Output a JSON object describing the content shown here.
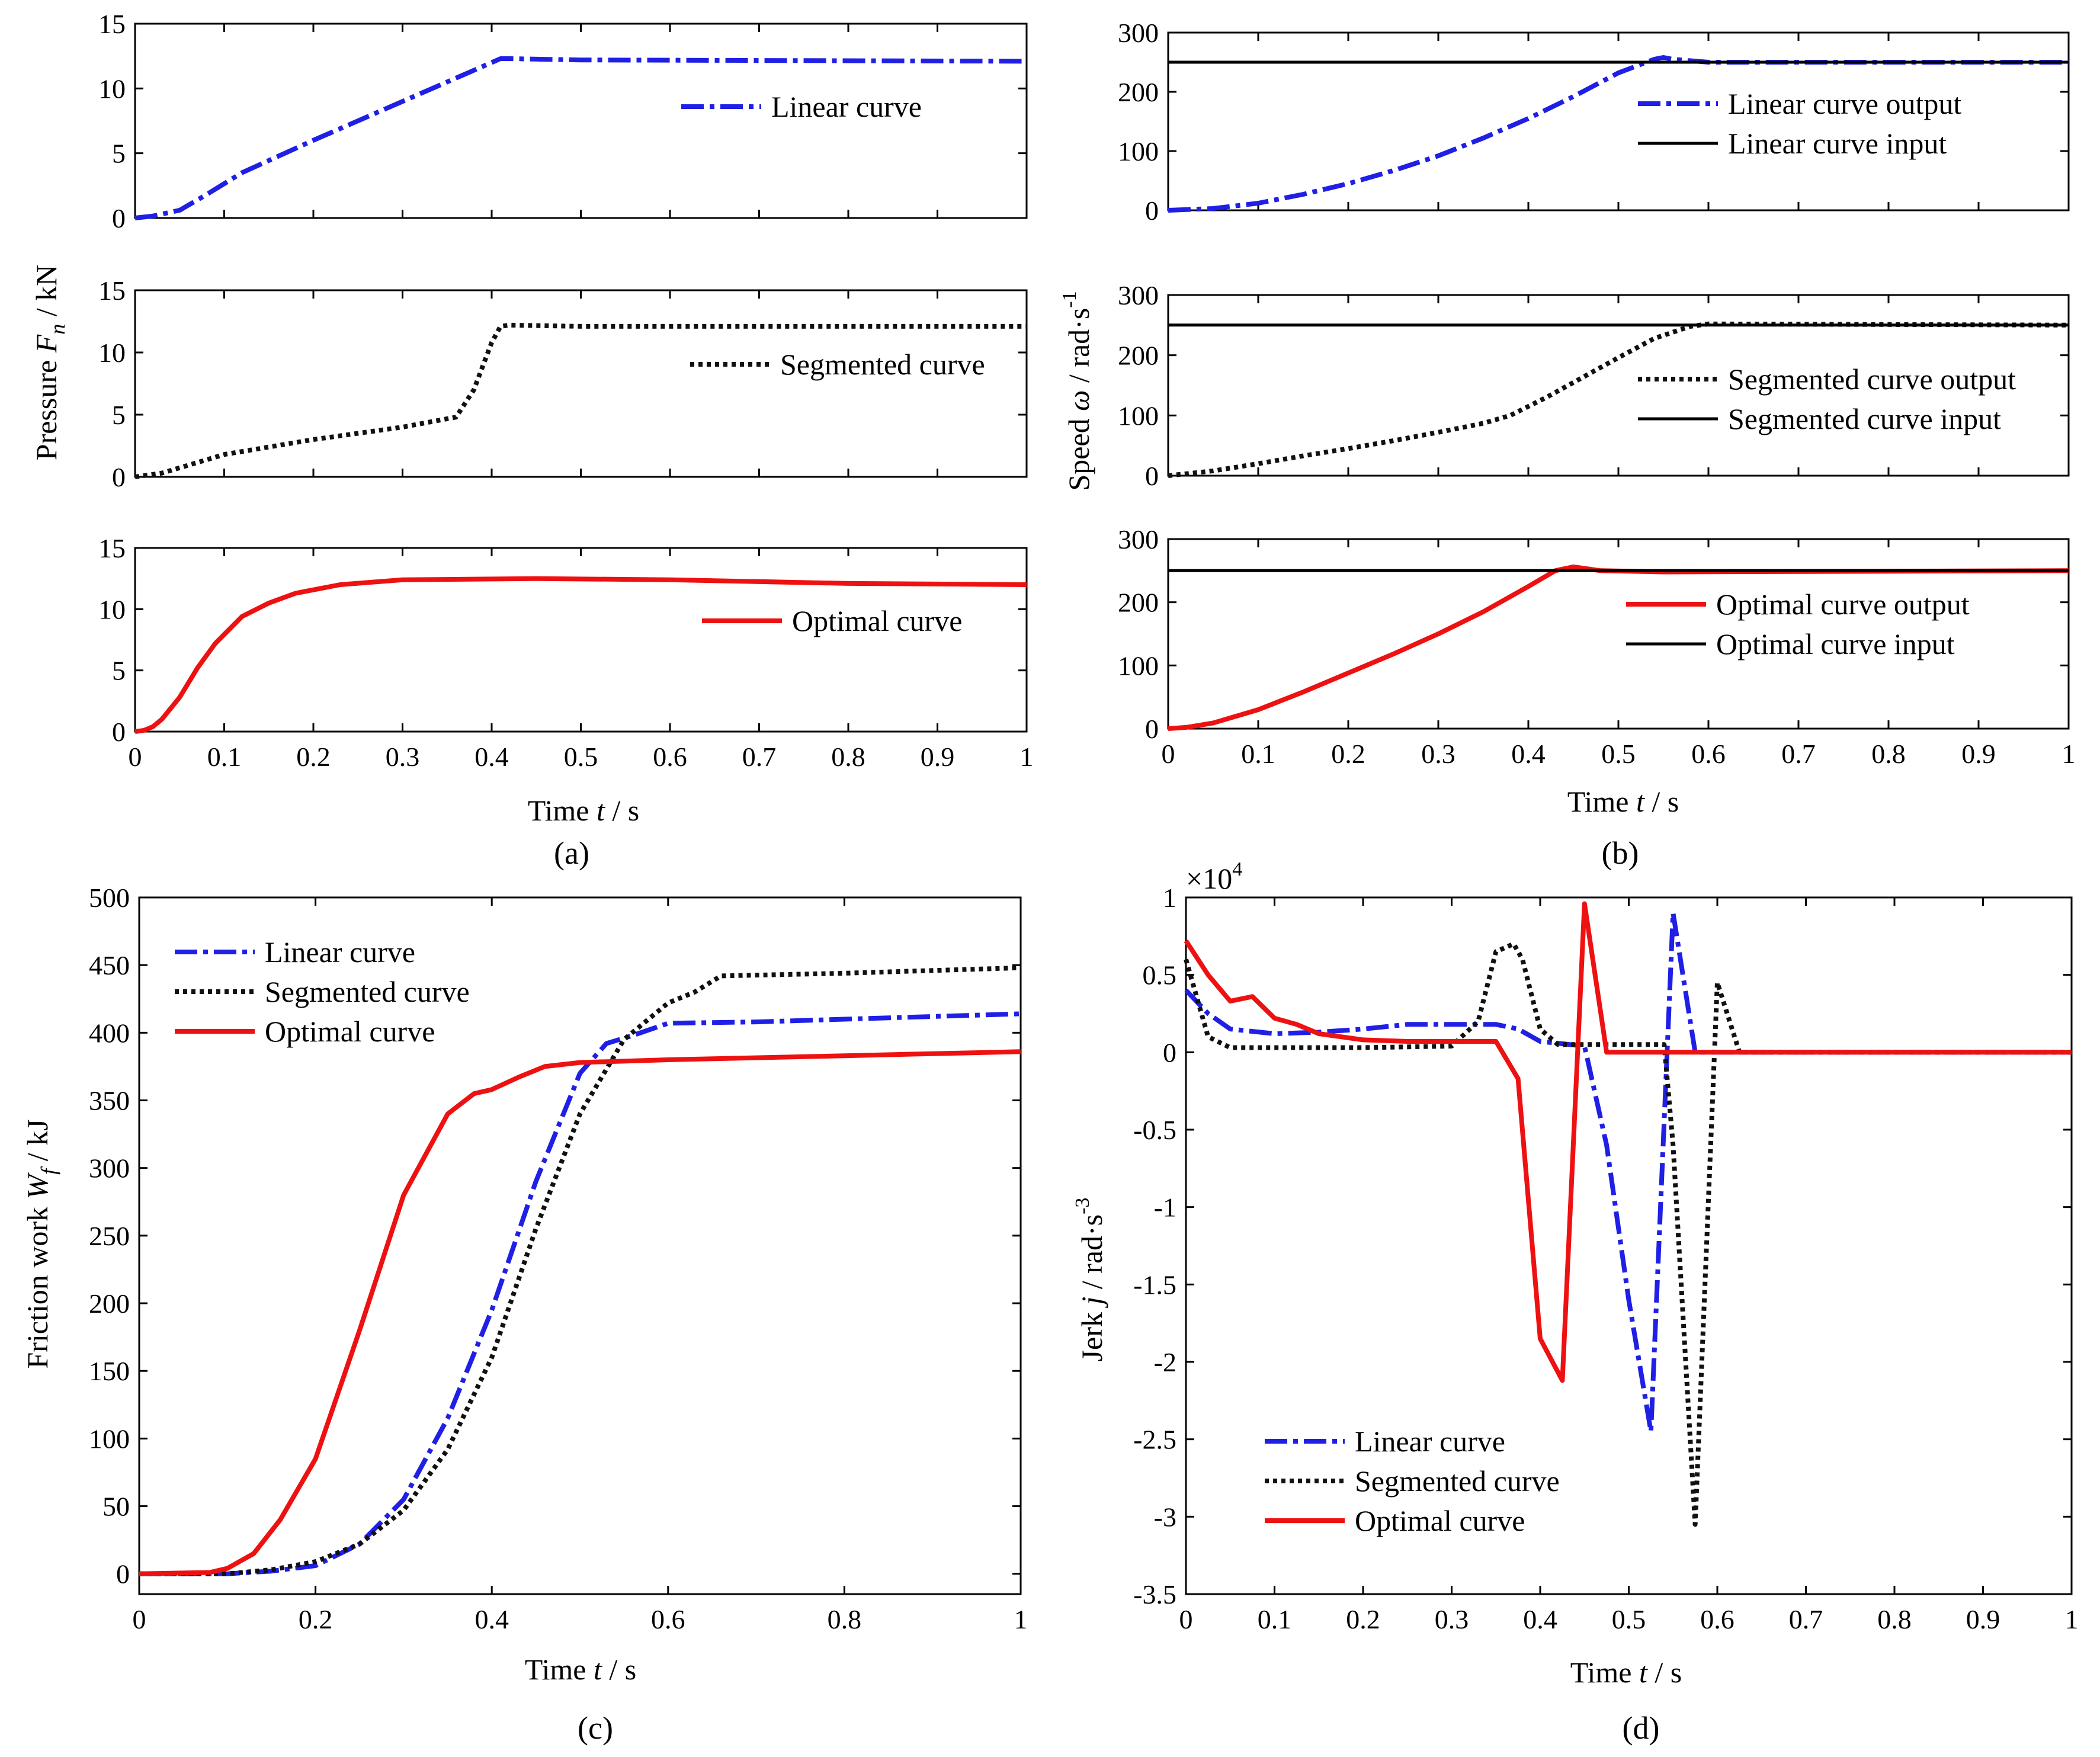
{
  "colors": {
    "linear": "#1f1fe6",
    "segmented": "#111111",
    "optimal": "#ee1111",
    "input": "#000000"
  },
  "captions": {
    "a": "(a)",
    "b": "(b)",
    "c": "(c)",
    "d": "(d)"
  },
  "labels": {
    "time": "Time",
    "t": "t",
    "sec": " / s",
    "pressure": "Pressure",
    "F": "F",
    "n": "n",
    "kN": " / kN",
    "speed": "Speed",
    "omega": "ω",
    "rad_s": " / rad·s",
    "exp_m1": "-1",
    "friction": "Friction work",
    "W": "W",
    "f": "f",
    "kJ": " / kJ",
    "jerk": "Jerk",
    "j": "j",
    "rad_s3": " / rad·s",
    "exp_m3": "-3",
    "mult": "×10",
    "mult_exp": "4"
  },
  "chart_data": [
    {
      "id": "a1",
      "type": "line",
      "xlim": [
        0,
        1
      ],
      "ylim": [
        0,
        15
      ],
      "xticks": [
        "0",
        "0.1",
        "0.2",
        "0.3",
        "0.4",
        "0.5",
        "0.6",
        "0.7",
        "0.8",
        "0.9",
        "1"
      ],
      "yticks": [
        "0",
        "5",
        "10",
        "15"
      ],
      "series": [
        {
          "name": "Linear curve",
          "style": "linear",
          "x": [
            0,
            0.02,
            0.05,
            0.08,
            0.12,
            0.2,
            0.3,
            0.41,
            0.42,
            0.5,
            1
          ],
          "y": [
            0,
            0.15,
            0.6,
            1.8,
            3.5,
            6,
            9,
            12.3,
            12.3,
            12.2,
            12.1
          ]
        }
      ]
    },
    {
      "id": "a2",
      "type": "line",
      "xlim": [
        0,
        1
      ],
      "ylim": [
        0,
        15
      ],
      "xticks": [
        "0",
        "0.1",
        "0.2",
        "0.3",
        "0.4",
        "0.5",
        "0.6",
        "0.7",
        "0.8",
        "0.9",
        "1"
      ],
      "yticks": [
        "0",
        "5",
        "10",
        "15"
      ],
      "series": [
        {
          "name": "Segmented curve",
          "style": "segmented",
          "x": [
            0,
            0.03,
            0.1,
            0.2,
            0.3,
            0.36,
            0.38,
            0.4,
            0.41,
            0.42,
            0.5,
            1
          ],
          "y": [
            0,
            0.3,
            1.8,
            3,
            4,
            4.8,
            7,
            10.8,
            12.1,
            12.2,
            12.1,
            12.1
          ]
        }
      ]
    },
    {
      "id": "a3",
      "type": "line",
      "xlim": [
        0,
        1
      ],
      "ylim": [
        0,
        15
      ],
      "xticks": [
        "0",
        "0.1",
        "0.2",
        "0.3",
        "0.4",
        "0.5",
        "0.6",
        "0.7",
        "0.8",
        "0.9",
        "1"
      ],
      "yticks": [
        "0",
        "5",
        "10",
        "15"
      ],
      "series": [
        {
          "name": "Optimal curve",
          "style": "optimal",
          "x": [
            0,
            0.01,
            0.02,
            0.03,
            0.05,
            0.07,
            0.09,
            0.12,
            0.15,
            0.18,
            0.23,
            0.3,
            0.45,
            0.6,
            0.8,
            1
          ],
          "y": [
            0,
            0.1,
            0.4,
            1,
            2.8,
            5.2,
            7.2,
            9.4,
            10.5,
            11.3,
            12,
            12.4,
            12.5,
            12.4,
            12.1,
            12
          ]
        }
      ]
    },
    {
      "id": "b1",
      "type": "line",
      "xlim": [
        0,
        1
      ],
      "ylim": [
        0,
        300
      ],
      "xticks": [
        "0",
        "0.1",
        "0.2",
        "0.3",
        "0.4",
        "0.5",
        "0.6",
        "0.7",
        "0.8",
        "0.9",
        "1"
      ],
      "yticks": [
        "0",
        "100",
        "200",
        "300"
      ],
      "series": [
        {
          "name": "Linear curve output",
          "style": "linear",
          "x": [
            0,
            0.05,
            0.1,
            0.15,
            0.2,
            0.25,
            0.3,
            0.35,
            0.4,
            0.45,
            0.5,
            0.54,
            0.55,
            0.56,
            0.6,
            1
          ],
          "y": [
            0,
            3,
            12,
            27,
            45,
            67,
            92,
            122,
            155,
            192,
            232,
            255,
            258,
            255,
            250,
            250
          ]
        },
        {
          "name": "Linear curve input",
          "style": "input",
          "x": [
            0,
            1
          ],
          "y": [
            250,
            250
          ]
        }
      ]
    },
    {
      "id": "b2",
      "type": "line",
      "xlim": [
        0,
        1
      ],
      "ylim": [
        0,
        300
      ],
      "xticks": [
        "0",
        "0.1",
        "0.2",
        "0.3",
        "0.4",
        "0.5",
        "0.6",
        "0.7",
        "0.8",
        "0.9",
        "1"
      ],
      "yticks": [
        "0",
        "100",
        "200",
        "300"
      ],
      "series": [
        {
          "name": "Segmented curve output",
          "style": "segmented",
          "x": [
            0,
            0.05,
            0.1,
            0.15,
            0.2,
            0.25,
            0.3,
            0.35,
            0.38,
            0.42,
            0.46,
            0.5,
            0.54,
            0.58,
            0.6,
            1
          ],
          "y": [
            0,
            8,
            20,
            33,
            45,
            58,
            72,
            87,
            100,
            130,
            163,
            196,
            228,
            248,
            252,
            250
          ]
        },
        {
          "name": "Segmented curve input",
          "style": "input",
          "x": [
            0,
            1
          ],
          "y": [
            250,
            250
          ]
        }
      ]
    },
    {
      "id": "b3",
      "type": "line",
      "xlim": [
        0,
        1
      ],
      "ylim": [
        0,
        300
      ],
      "xticks": [
        "0",
        "0.1",
        "0.2",
        "0.3",
        "0.4",
        "0.5",
        "0.6",
        "0.7",
        "0.8",
        "0.9",
        "1"
      ],
      "yticks": [
        "0",
        "100",
        "200",
        "300"
      ],
      "series": [
        {
          "name": "Optimal curve output",
          "style": "optimal",
          "x": [
            0,
            0.02,
            0.05,
            0.1,
            0.15,
            0.2,
            0.25,
            0.3,
            0.35,
            0.4,
            0.43,
            0.45,
            0.48,
            0.55,
            1
          ],
          "y": [
            0,
            2,
            9,
            30,
            58,
            88,
            118,
            150,
            185,
            225,
            250,
            256,
            250,
            248,
            250
          ]
        },
        {
          "name": "Optimal curve input",
          "style": "input",
          "x": [
            0,
            1
          ],
          "y": [
            250,
            250
          ]
        }
      ]
    },
    {
      "id": "c",
      "type": "line",
      "xlim": [
        0,
        1
      ],
      "ylim": [
        -15,
        500
      ],
      "xticks": [
        "0",
        "0.2",
        "0.4",
        "0.6",
        "0.8",
        "1"
      ],
      "yticks": [
        "0",
        "50",
        "100",
        "150",
        "200",
        "250",
        "300",
        "350",
        "400",
        "450",
        "500"
      ],
      "series": [
        {
          "name": "Linear curve",
          "style": "linear",
          "x": [
            0,
            0.1,
            0.15,
            0.2,
            0.25,
            0.3,
            0.35,
            0.4,
            0.45,
            0.5,
            0.53,
            0.56,
            0.6,
            0.7,
            0.8,
            1
          ],
          "y": [
            0,
            0,
            2,
            6,
            22,
            55,
            115,
            195,
            290,
            370,
            392,
            398,
            407,
            408,
            410,
            414
          ]
        },
        {
          "name": "Segmented curve",
          "style": "segmented",
          "x": [
            0,
            0.1,
            0.15,
            0.2,
            0.25,
            0.3,
            0.35,
            0.4,
            0.45,
            0.5,
            0.55,
            0.6,
            0.63,
            0.66,
            0.8,
            1
          ],
          "y": [
            0,
            0,
            3,
            9,
            22,
            47,
            92,
            160,
            255,
            340,
            395,
            422,
            430,
            442,
            444,
            448
          ]
        },
        {
          "name": "Optimal curve",
          "style": "optimal",
          "x": [
            0,
            0.08,
            0.1,
            0.13,
            0.16,
            0.2,
            0.25,
            0.3,
            0.35,
            0.38,
            0.4,
            0.43,
            0.46,
            0.5,
            0.6,
            0.8,
            1
          ],
          "y": [
            0,
            1,
            4,
            15,
            40,
            85,
            180,
            280,
            340,
            355,
            358,
            367,
            375,
            378,
            380,
            383,
            386
          ]
        }
      ]
    },
    {
      "id": "d",
      "type": "line",
      "xlim": [
        0,
        1
      ],
      "ylim": [
        -3.5,
        1
      ],
      "xticks": [
        "0",
        "0.1",
        "0.2",
        "0.3",
        "0.4",
        "0.5",
        "0.6",
        "0.7",
        "0.8",
        "0.9",
        "1"
      ],
      "yticks": [
        "-3.5",
        "-3",
        "-2.5",
        "-2",
        "-1.5",
        "-1",
        "-0.5",
        "0",
        "0.5",
        "1"
      ],
      "series": [
        {
          "name": "Linear curve",
          "style": "linear",
          "x": [
            0,
            0.025,
            0.05,
            0.1,
            0.15,
            0.2,
            0.25,
            0.3,
            0.35,
            0.375,
            0.4,
            0.45,
            0.475,
            0.5,
            0.525,
            0.55,
            0.575,
            0.6,
            1
          ],
          "y": [
            0.4,
            0.25,
            0.15,
            0.12,
            0.13,
            0.15,
            0.18,
            0.18,
            0.18,
            0.15,
            0.07,
            0.04,
            -0.6,
            -1.6,
            -2.45,
            0.9,
            0,
            0,
            0
          ]
        },
        {
          "name": "Segmented curve",
          "style": "segmented",
          "x": [
            0,
            0.025,
            0.05,
            0.1,
            0.2,
            0.3,
            0.33,
            0.35,
            0.37,
            0.38,
            0.4,
            0.42,
            0.45,
            0.5,
            0.54,
            0.55,
            0.575,
            0.6,
            0.625,
            0.65,
            1
          ],
          "y": [
            0.6,
            0.1,
            0.03,
            0.03,
            0.03,
            0.04,
            0.2,
            0.65,
            0.7,
            0.6,
            0.15,
            0.05,
            0.05,
            0.05,
            0.05,
            -0.6,
            -3.05,
            0.45,
            0,
            0,
            0
          ]
        },
        {
          "name": "Optimal curve",
          "style": "optimal",
          "x": [
            0,
            0.025,
            0.05,
            0.075,
            0.1,
            0.125,
            0.15,
            0.2,
            0.25,
            0.3,
            0.35,
            0.375,
            0.4,
            0.425,
            0.45,
            0.475,
            0.5,
            1
          ],
          "y": [
            0.72,
            0.5,
            0.33,
            0.36,
            0.22,
            0.18,
            0.12,
            0.08,
            0.07,
            0.07,
            0.07,
            -0.17,
            -1.85,
            -2.12,
            0.96,
            0,
            0,
            0
          ]
        }
      ]
    }
  ]
}
